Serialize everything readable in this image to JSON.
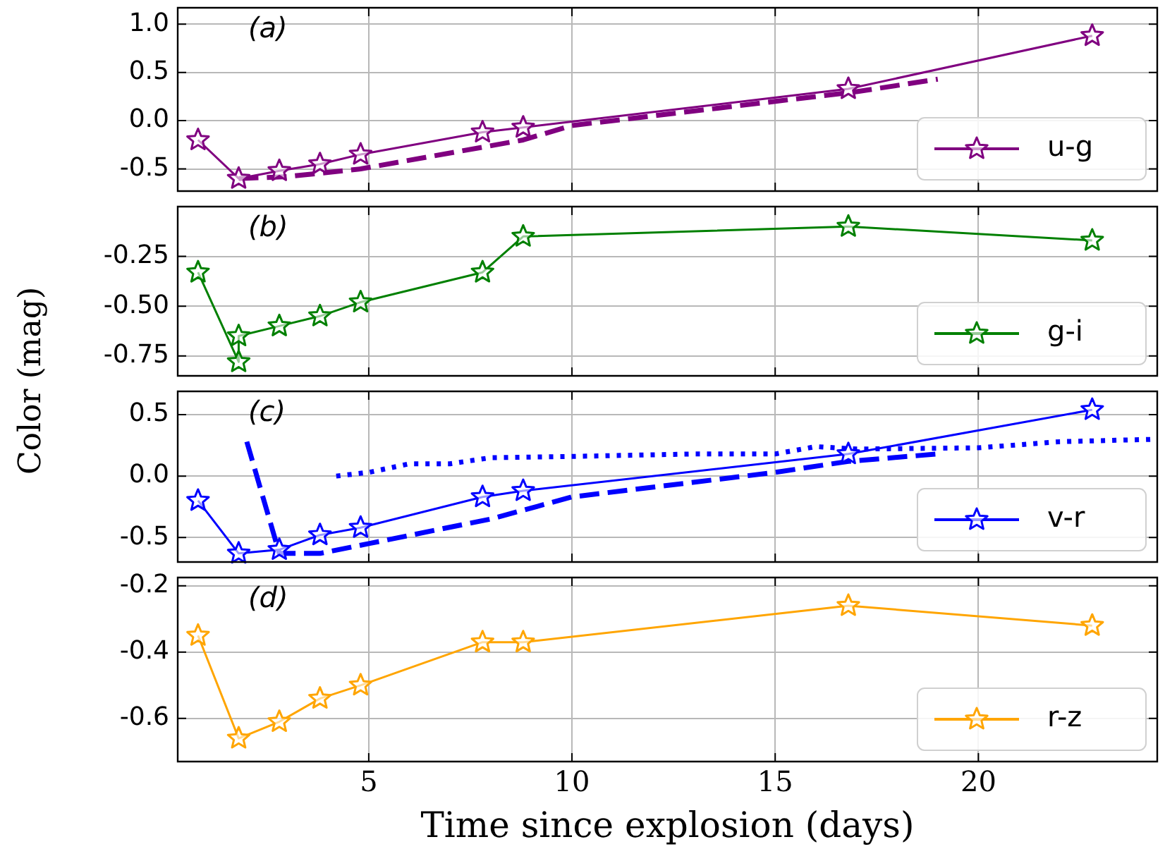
{
  "chart_data": [
    {
      "type": "line",
      "annotations": [
        "(a)"
      ],
      "xlim": [
        0.3,
        24.4
      ],
      "xticks": [
        5,
        10,
        15,
        20
      ],
      "ylim": [
        -0.73,
        1.17
      ],
      "yticks": [
        {
          "value": -0.5,
          "label": "-0.5"
        },
        {
          "value": 0,
          "label": "0.0"
        },
        {
          "value": 0.5,
          "label": "0.5"
        },
        {
          "value": 1,
          "label": "1.0"
        }
      ],
      "grid": true,
      "legend": "bottom right",
      "tick_labels": "y",
      "series": [
        {
          "name": "u-g",
          "color": "#800080",
          "marker": "star",
          "line_style": "solid",
          "x": [
            0.8,
            1.8,
            2.8,
            3.8,
            4.8,
            7.8,
            8.8,
            16.8,
            22.8
          ],
          "values": [
            -0.2,
            -0.6,
            -0.52,
            -0.45,
            -0.35,
            -0.12,
            -0.07,
            0.33,
            0.88
          ]
        },
        {
          "color": "#800080",
          "marker": "none",
          "line_style": "dashed",
          "x": [
            1.8,
            3,
            4.8,
            8.8,
            10,
            15,
            17,
            19
          ],
          "values": [
            -0.6,
            -0.58,
            -0.5,
            -0.2,
            -0.05,
            0.2,
            0.3,
            0.43
          ]
        }
      ]
    },
    {
      "type": "line",
      "annotations": [
        "(b)"
      ],
      "ylabel": "Color (mag)",
      "xlim": [
        0.3,
        24.4
      ],
      "xticks": [
        5,
        10,
        15,
        20
      ],
      "ylim": [
        -0.85,
        0
      ],
      "yticks": [
        {
          "value": -0.75,
          "label": "-0.75"
        },
        {
          "value": -0.5,
          "label": "-0.50"
        },
        {
          "value": -0.25,
          "label": "-0.25"
        }
      ],
      "grid": true,
      "legend": "bottom right",
      "tick_labels": "y",
      "series": [
        {
          "name": "g-i",
          "color": "#008000",
          "marker": "star",
          "line_style": "solid",
          "x": [
            0.8,
            1.8,
            1.8,
            2.8,
            3.8,
            4.8,
            7.8,
            8.8,
            16.8,
            22.8
          ],
          "values": [
            -0.33,
            -0.78,
            -0.65,
            -0.6,
            -0.55,
            -0.48,
            -0.33,
            -0.15,
            -0.1,
            -0.17
          ]
        }
      ]
    },
    {
      "type": "line",
      "annotations": [
        "(c)"
      ],
      "xlim": [
        0.3,
        24.4
      ],
      "xticks": [
        5,
        10,
        15,
        20
      ],
      "ylim": [
        -0.7,
        0.69
      ],
      "yticks": [
        {
          "value": -0.5,
          "label": "-0.5"
        },
        {
          "value": 0,
          "label": "0.0"
        },
        {
          "value": 0.5,
          "label": "0.5"
        }
      ],
      "grid": true,
      "legend": "bottom right",
      "tick_labels": "y",
      "series": [
        {
          "name": "v-r",
          "color": "#0000ff",
          "marker": "star",
          "line_style": "solid",
          "x": [
            0.8,
            1.8,
            2.8,
            3.8,
            4.8,
            7.8,
            8.8,
            16.8,
            22.8
          ],
          "values": [
            -0.2,
            -0.63,
            -0.6,
            -0.48,
            -0.42,
            -0.17,
            -0.12,
            0.18,
            0.54
          ]
        },
        {
          "color": "#0000ff",
          "marker": "none",
          "line_style": "dashed",
          "x": [
            2.0,
            2.8,
            3.8,
            5,
            8,
            10,
            15,
            16.8,
            19
          ],
          "values": [
            0.28,
            -0.63,
            -0.63,
            -0.55,
            -0.35,
            -0.17,
            0.03,
            0.12,
            0.18
          ]
        },
        {
          "color": "#0000ff",
          "marker": "none",
          "line_style": "dotted",
          "x": [
            4.2,
            5,
            6,
            7,
            8,
            10,
            13,
            15,
            16,
            17,
            20,
            22,
            24.4
          ],
          "values": [
            0.0,
            0.03,
            0.1,
            0.1,
            0.15,
            0.16,
            0.18,
            0.18,
            0.24,
            0.22,
            0.23,
            0.28,
            0.3
          ]
        }
      ]
    },
    {
      "type": "line",
      "annotations": [
        "(d)"
      ],
      "xlabel": "Time since explosion (days)",
      "xlim": [
        0.3,
        24.4
      ],
      "xticks": [
        5,
        10,
        15,
        20
      ],
      "ylim": [
        -0.73,
        -0.175
      ],
      "yticks": [
        {
          "value": -0.6,
          "label": "-0.6"
        },
        {
          "value": -0.4,
          "label": "-0.4"
        },
        {
          "value": -0.2,
          "label": "-0.2"
        }
      ],
      "grid": true,
      "legend": "bottom right",
      "series": [
        {
          "name": "r-z",
          "color": "#ffa500",
          "marker": "star",
          "line_style": "solid",
          "x": [
            0.8,
            1.8,
            2.8,
            3.8,
            4.8,
            7.8,
            8.8,
            16.8,
            22.8
          ],
          "values": [
            -0.35,
            -0.66,
            -0.61,
            -0.54,
            -0.5,
            -0.37,
            -0.37,
            -0.26,
            -0.32
          ]
        }
      ]
    }
  ]
}
